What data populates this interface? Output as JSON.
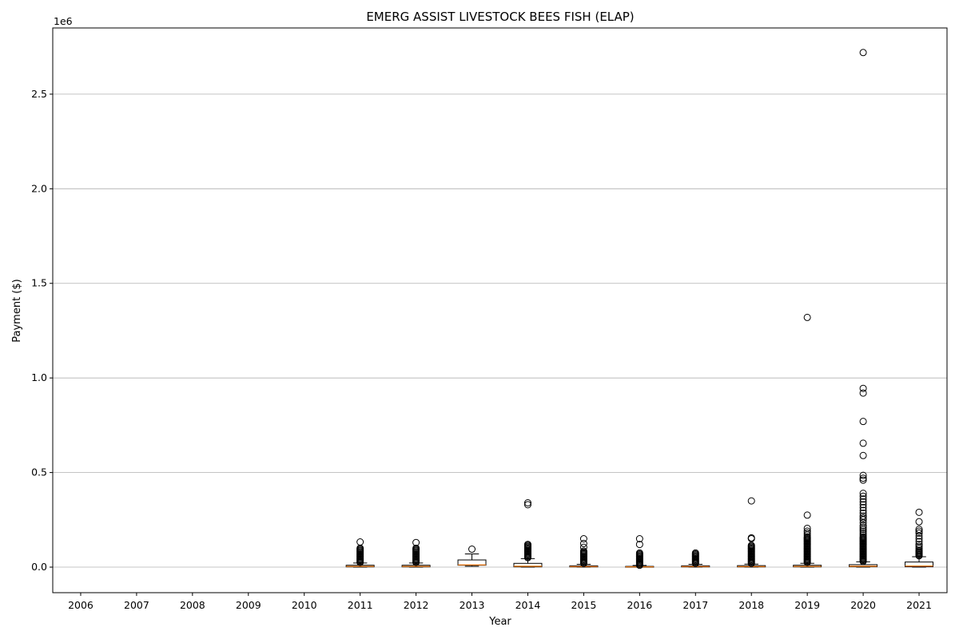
{
  "chart_data": {
    "type": "box",
    "title": "EMERG ASSIST LIVESTOCK BEES FISH (ELAP)",
    "xlabel": "Year",
    "ylabel": "Payment ($)",
    "y_scale_label": "1e6",
    "ylim": [
      -135000,
      2850000
    ],
    "yticks": [
      0.0,
      0.5,
      1.0,
      1.5,
      2.0,
      2.5
    ],
    "ytick_labels": [
      "0.0",
      "0.5",
      "1.0",
      "1.5",
      "2.0",
      "2.5"
    ],
    "y_multiplier": 1000000,
    "grid": "horizontal",
    "colors": {
      "box_edge": "#000000",
      "median": "#ff7f0e",
      "grid": "#b0b0b0"
    },
    "categories": [
      "2006",
      "2007",
      "2008",
      "2009",
      "2010",
      "2011",
      "2012",
      "2013",
      "2014",
      "2015",
      "2016",
      "2017",
      "2018",
      "2019",
      "2020",
      "2021"
    ],
    "boxes": [
      {
        "year": "2006",
        "q1": null,
        "median": null,
        "q3": null,
        "whisker_low": null,
        "whisker_high": null,
        "outliers": []
      },
      {
        "year": "2007",
        "q1": null,
        "median": null,
        "q3": null,
        "whisker_low": null,
        "whisker_high": null,
        "outliers": []
      },
      {
        "year": "2008",
        "q1": null,
        "median": null,
        "q3": null,
        "whisker_low": null,
        "whisker_high": null,
        "outliers": []
      },
      {
        "year": "2009",
        "q1": null,
        "median": null,
        "q3": null,
        "whisker_low": null,
        "whisker_high": null,
        "outliers": []
      },
      {
        "year": "2010",
        "q1": null,
        "median": null,
        "q3": null,
        "whisker_low": null,
        "whisker_high": null,
        "outliers": []
      },
      {
        "year": "2011",
        "q1": 1500,
        "median": 4000,
        "q3": 10000,
        "whisker_low": 0,
        "whisker_high": 22000,
        "outliers": [
          25000,
          30000,
          35000,
          40000,
          45000,
          50000,
          55000,
          60000,
          65000,
          70000,
          75000,
          80000,
          85000,
          90000,
          95000,
          100000,
          133000
        ]
      },
      {
        "year": "2012",
        "q1": 1500,
        "median": 4000,
        "q3": 10000,
        "whisker_low": 0,
        "whisker_high": 22000,
        "outliers": [
          25000,
          30000,
          35000,
          40000,
          45000,
          50000,
          55000,
          60000,
          65000,
          70000,
          75000,
          80000,
          85000,
          90000,
          95000,
          100000,
          130000
        ]
      },
      {
        "year": "2013",
        "q1": 10000,
        "median": 12000,
        "q3": 38000,
        "whisker_low": 5000,
        "whisker_high": 70000,
        "outliers": [
          95000
        ]
      },
      {
        "year": "2014",
        "q1": 1500,
        "median": 5000,
        "q3": 20000,
        "whisker_low": 0,
        "whisker_high": 45000,
        "outliers": [
          50000,
          55000,
          60000,
          65000,
          70000,
          75000,
          80000,
          85000,
          90000,
          95000,
          100000,
          105000,
          110000,
          115000,
          120000,
          330000,
          340000
        ]
      },
      {
        "year": "2015",
        "q1": 1000,
        "median": 3000,
        "q3": 7000,
        "whisker_low": 0,
        "whisker_high": 15000,
        "outliers": [
          20000,
          25000,
          30000,
          35000,
          40000,
          45000,
          50000,
          55000,
          60000,
          65000,
          70000,
          75000,
          80000,
          85000,
          105000,
          125000,
          150000
        ]
      },
      {
        "year": "2016",
        "q1": 500,
        "median": 1500,
        "q3": 4000,
        "whisker_low": 0,
        "whisker_high": 9000,
        "outliers": [
          10000,
          15000,
          20000,
          25000,
          30000,
          35000,
          40000,
          45000,
          50000,
          55000,
          60000,
          65000,
          70000,
          75000,
          120000,
          150000
        ]
      },
      {
        "year": "2017",
        "q1": 1000,
        "median": 3000,
        "q3": 7000,
        "whisker_low": 0,
        "whisker_high": 15000,
        "outliers": [
          20000,
          25000,
          30000,
          35000,
          40000,
          45000,
          50000,
          55000,
          60000,
          65000,
          70000,
          75000
        ]
      },
      {
        "year": "2018",
        "q1": 1000,
        "median": 3000,
        "q3": 8000,
        "whisker_low": 0,
        "whisker_high": 16000,
        "outliers": [
          20000,
          25000,
          30000,
          35000,
          40000,
          45000,
          50000,
          55000,
          60000,
          65000,
          70000,
          75000,
          80000,
          85000,
          90000,
          95000,
          100000,
          105000,
          110000,
          115000,
          150000,
          155000,
          350000
        ]
      },
      {
        "year": "2019",
        "q1": 1500,
        "median": 4000,
        "q3": 10000,
        "whisker_low": 0,
        "whisker_high": 20000,
        "outliers": [
          25000,
          30000,
          35000,
          40000,
          45000,
          50000,
          55000,
          60000,
          65000,
          70000,
          75000,
          80000,
          85000,
          90000,
          95000,
          100000,
          105000,
          110000,
          115000,
          120000,
          125000,
          130000,
          135000,
          140000,
          145000,
          150000,
          155000,
          160000,
          170000,
          180000,
          190000,
          205000,
          275000,
          1320000
        ]
      },
      {
        "year": "2020",
        "q1": 2000,
        "median": 5000,
        "q3": 13000,
        "whisker_low": 0,
        "whisker_high": 28000,
        "outliers": [
          30000,
          35000,
          40000,
          45000,
          50000,
          55000,
          60000,
          65000,
          70000,
          75000,
          80000,
          85000,
          90000,
          95000,
          100000,
          105000,
          110000,
          115000,
          120000,
          125000,
          130000,
          135000,
          140000,
          145000,
          150000,
          155000,
          160000,
          170000,
          180000,
          190000,
          200000,
          210000,
          220000,
          235000,
          250000,
          260000,
          270000,
          285000,
          300000,
          315000,
          330000,
          345000,
          360000,
          375000,
          390000,
          460000,
          470000,
          485000,
          590000,
          655000,
          770000,
          920000,
          945000,
          2720000
        ]
      },
      {
        "year": "2021",
        "q1": 2000,
        "median": 6000,
        "q3": 27000,
        "whisker_low": 0,
        "whisker_high": 55000,
        "outliers": [
          60000,
          65000,
          70000,
          75000,
          80000,
          85000,
          90000,
          100000,
          110000,
          120000,
          135000,
          150000,
          165000,
          180000,
          190000,
          200000,
          240000,
          290000
        ]
      }
    ]
  }
}
